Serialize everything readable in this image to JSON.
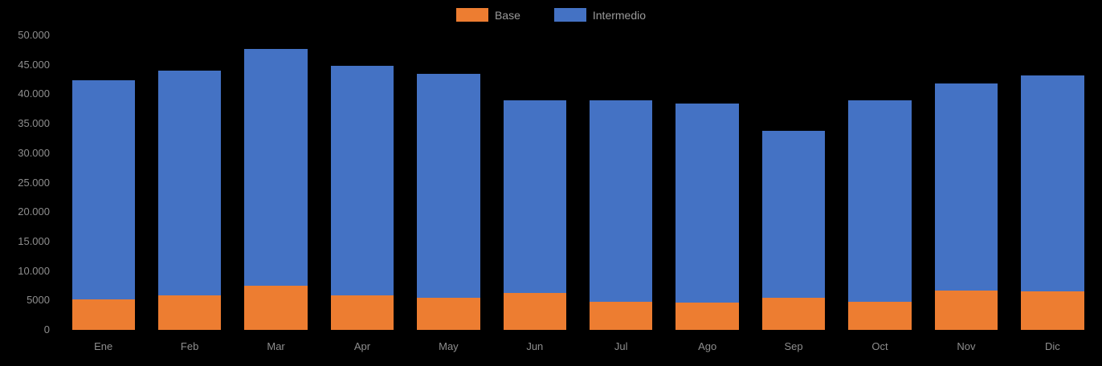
{
  "chart_data": {
    "type": "bar",
    "stacked": true,
    "title": "",
    "categories": [
      "Ene",
      "Feb",
      "Mar",
      "Apr",
      "May",
      "Jun",
      "Jul",
      "Ago",
      "Sep",
      "Oct",
      "Nov",
      "Dic"
    ],
    "series": [
      {
        "name": "Base",
        "color": "#ED7D31",
        "values": [
          5200,
          5800,
          7500,
          5800,
          5400,
          6300,
          4800,
          4700,
          5400,
          4800,
          6700,
          6600
        ]
      },
      {
        "name": "Intermedio",
        "color": "#4472C4",
        "values": [
          37200,
          38200,
          40200,
          39000,
          38000,
          32700,
          34200,
          33700,
          28400,
          34200,
          35100,
          36600
        ]
      }
    ],
    "totals": [
      42400,
      44000,
      47700,
      44800,
      43400,
      39000,
      39000,
      38400,
      33800,
      39000,
      41800,
      43200
    ],
    "xlabel": "",
    "ylabel": "",
    "ylim": [
      0,
      50000
    ],
    "yticks": [
      {
        "value": 50000,
        "label": "50.000"
      },
      {
        "value": 45000,
        "label": "45.000"
      },
      {
        "value": 40000,
        "label": "40.000"
      },
      {
        "value": 35000,
        "label": "35.000"
      },
      {
        "value": 30000,
        "label": "30.000"
      },
      {
        "value": 25000,
        "label": "25.000"
      },
      {
        "value": 20000,
        "label": "20.000"
      },
      {
        "value": 15000,
        "label": "15.000"
      },
      {
        "value": 10000,
        "label": "10.000"
      },
      {
        "value": 5000,
        "label": "5000"
      },
      {
        "value": 0,
        "label": "0"
      }
    ],
    "legend_position": "top",
    "grid": false,
    "background_color": "#000000",
    "label_color": "#8e8e8e"
  }
}
